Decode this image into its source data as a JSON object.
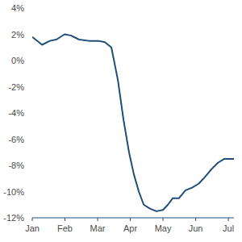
{
  "chart_data": {
    "type": "line",
    "x": [
      0,
      0.3,
      0.54,
      0.74,
      0.99,
      1.19,
      1.43,
      1.73,
      2.02,
      2.22,
      2.42,
      2.62,
      2.79,
      2.96,
      3.11,
      3.26,
      3.41,
      3.6,
      3.8,
      4.0,
      4.15,
      4.3,
      4.49,
      4.69,
      4.89,
      5.09,
      5.28,
      5.48,
      5.68,
      5.88,
      6.17
    ],
    "values": [
      1.8,
      1.2,
      1.5,
      1.6,
      2.0,
      1.9,
      1.6,
      1.5,
      1.5,
      1.4,
      1.0,
      -1.5,
      -4.5,
      -7.0,
      -8.7,
      -10.0,
      -11.0,
      -11.3,
      -11.5,
      -11.4,
      -11.0,
      -10.5,
      -10.5,
      -9.9,
      -9.7,
      -9.4,
      -8.9,
      -8.3,
      -7.8,
      -7.5,
      -7.5
    ],
    "color": "#1f4e79",
    "xlim": [
      0,
      6.17
    ],
    "xticks": [
      {
        "value": 0,
        "label": "Jan"
      },
      {
        "value": 1,
        "label": "Feb"
      },
      {
        "value": 2,
        "label": "Mar"
      },
      {
        "value": 3,
        "label": "Apr"
      },
      {
        "value": 4,
        "label": "May"
      },
      {
        "value": 5,
        "label": "Jun"
      },
      {
        "value": 6,
        "label": "Jul"
      }
    ],
    "ylim": [
      -12,
      4
    ],
    "yticks": [
      {
        "value": 4,
        "label": "4%"
      },
      {
        "value": 2,
        "label": "2%"
      },
      {
        "value": 0,
        "label": "0%"
      },
      {
        "value": -2,
        "label": "-2%"
      },
      {
        "value": -4,
        "label": "-4%"
      },
      {
        "value": -6,
        "label": "-6%"
      },
      {
        "value": -8,
        "label": "-8%"
      },
      {
        "value": -10,
        "label": "-10%"
      },
      {
        "value": -12,
        "label": "-12%"
      }
    ],
    "grid": false
  }
}
